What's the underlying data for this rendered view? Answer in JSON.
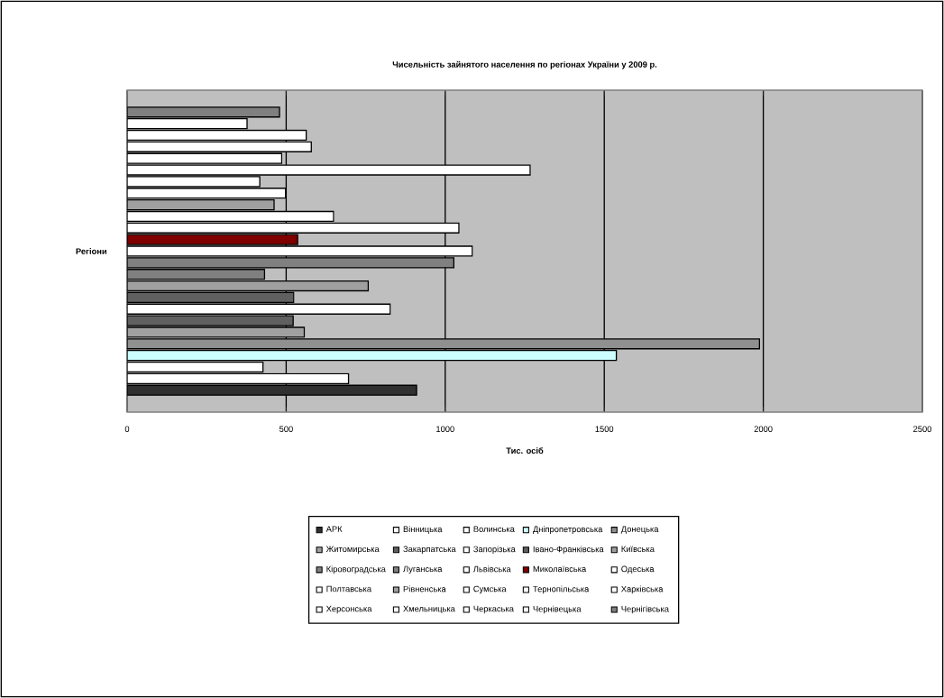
{
  "chart_data": {
    "type": "bar",
    "orientation": "horizontal",
    "title": "Чисельність зайнятого населення по регіонах України у 2009 р.",
    "xlabel": "Тис. осіб",
    "ylabel": "Регіони",
    "categories": [
      null
    ],
    "series": [
      {
        "name": "АРК",
        "color": "#303030",
        "values": [
          910
        ]
      },
      {
        "name": "Вінницька",
        "color": "#ffffff",
        "values": [
          696
        ]
      },
      {
        "name": "Волинська",
        "color": "#ffffff",
        "values": [
          427
        ]
      },
      {
        "name": "Дніпропетровська",
        "color": "#ccffff",
        "values": [
          1538
        ]
      },
      {
        "name": "Донецька",
        "color": "#909090",
        "values": [
          1988
        ]
      },
      {
        "name": "Житомирська",
        "color": "#a0a0a0",
        "values": [
          557
        ]
      },
      {
        "name": "Закарпатська",
        "color": "#606060",
        "values": [
          522
        ]
      },
      {
        "name": "Запорізька",
        "color": "#ffffff",
        "values": [
          827
        ]
      },
      {
        "name": "Івано-Франківська",
        "color": "#606060",
        "values": [
          524
        ]
      },
      {
        "name": "Київська",
        "color": "#a0a0a0",
        "values": [
          758
        ]
      },
      {
        "name": "Кіровоградська",
        "color": "#808080",
        "values": [
          432
        ]
      },
      {
        "name": "Луганська",
        "color": "#808080",
        "values": [
          1027
        ]
      },
      {
        "name": "Львівська",
        "color": "#ffffff",
        "values": [
          1085
        ]
      },
      {
        "name": "Миколаївська",
        "color": "#800000",
        "values": [
          536
        ]
      },
      {
        "name": "Одеська",
        "color": "#ffffff",
        "values": [
          1043
        ]
      },
      {
        "name": "Полтавська",
        "color": "#ffffff",
        "values": [
          649
        ]
      },
      {
        "name": "Рівненська",
        "color": "#a0a0a0",
        "values": [
          462
        ]
      },
      {
        "name": "Сумська",
        "color": "#ffffff",
        "values": [
          498
        ]
      },
      {
        "name": "Тернопільська",
        "color": "#ffffff",
        "values": [
          417
        ]
      },
      {
        "name": "Харківська",
        "color": "#ffffff",
        "values": [
          1267
        ]
      },
      {
        "name": "Херсонська",
        "color": "#ffffff",
        "values": [
          486
        ]
      },
      {
        "name": "Хмельницька",
        "color": "#ffffff",
        "values": [
          579
        ]
      },
      {
        "name": "Черкаська",
        "color": "#ffffff",
        "values": [
          563
        ]
      },
      {
        "name": "Чернівецька",
        "color": "#ffffff",
        "values": [
          377
        ]
      },
      {
        "name": "Чернігівська",
        "color": "#808080",
        "values": [
          479
        ]
      }
    ],
    "xlim": [
      0,
      2500
    ],
    "xticks": [
      0,
      500,
      1000,
      1500,
      2000,
      2500
    ],
    "grid": "x",
    "legend": "bottom"
  }
}
